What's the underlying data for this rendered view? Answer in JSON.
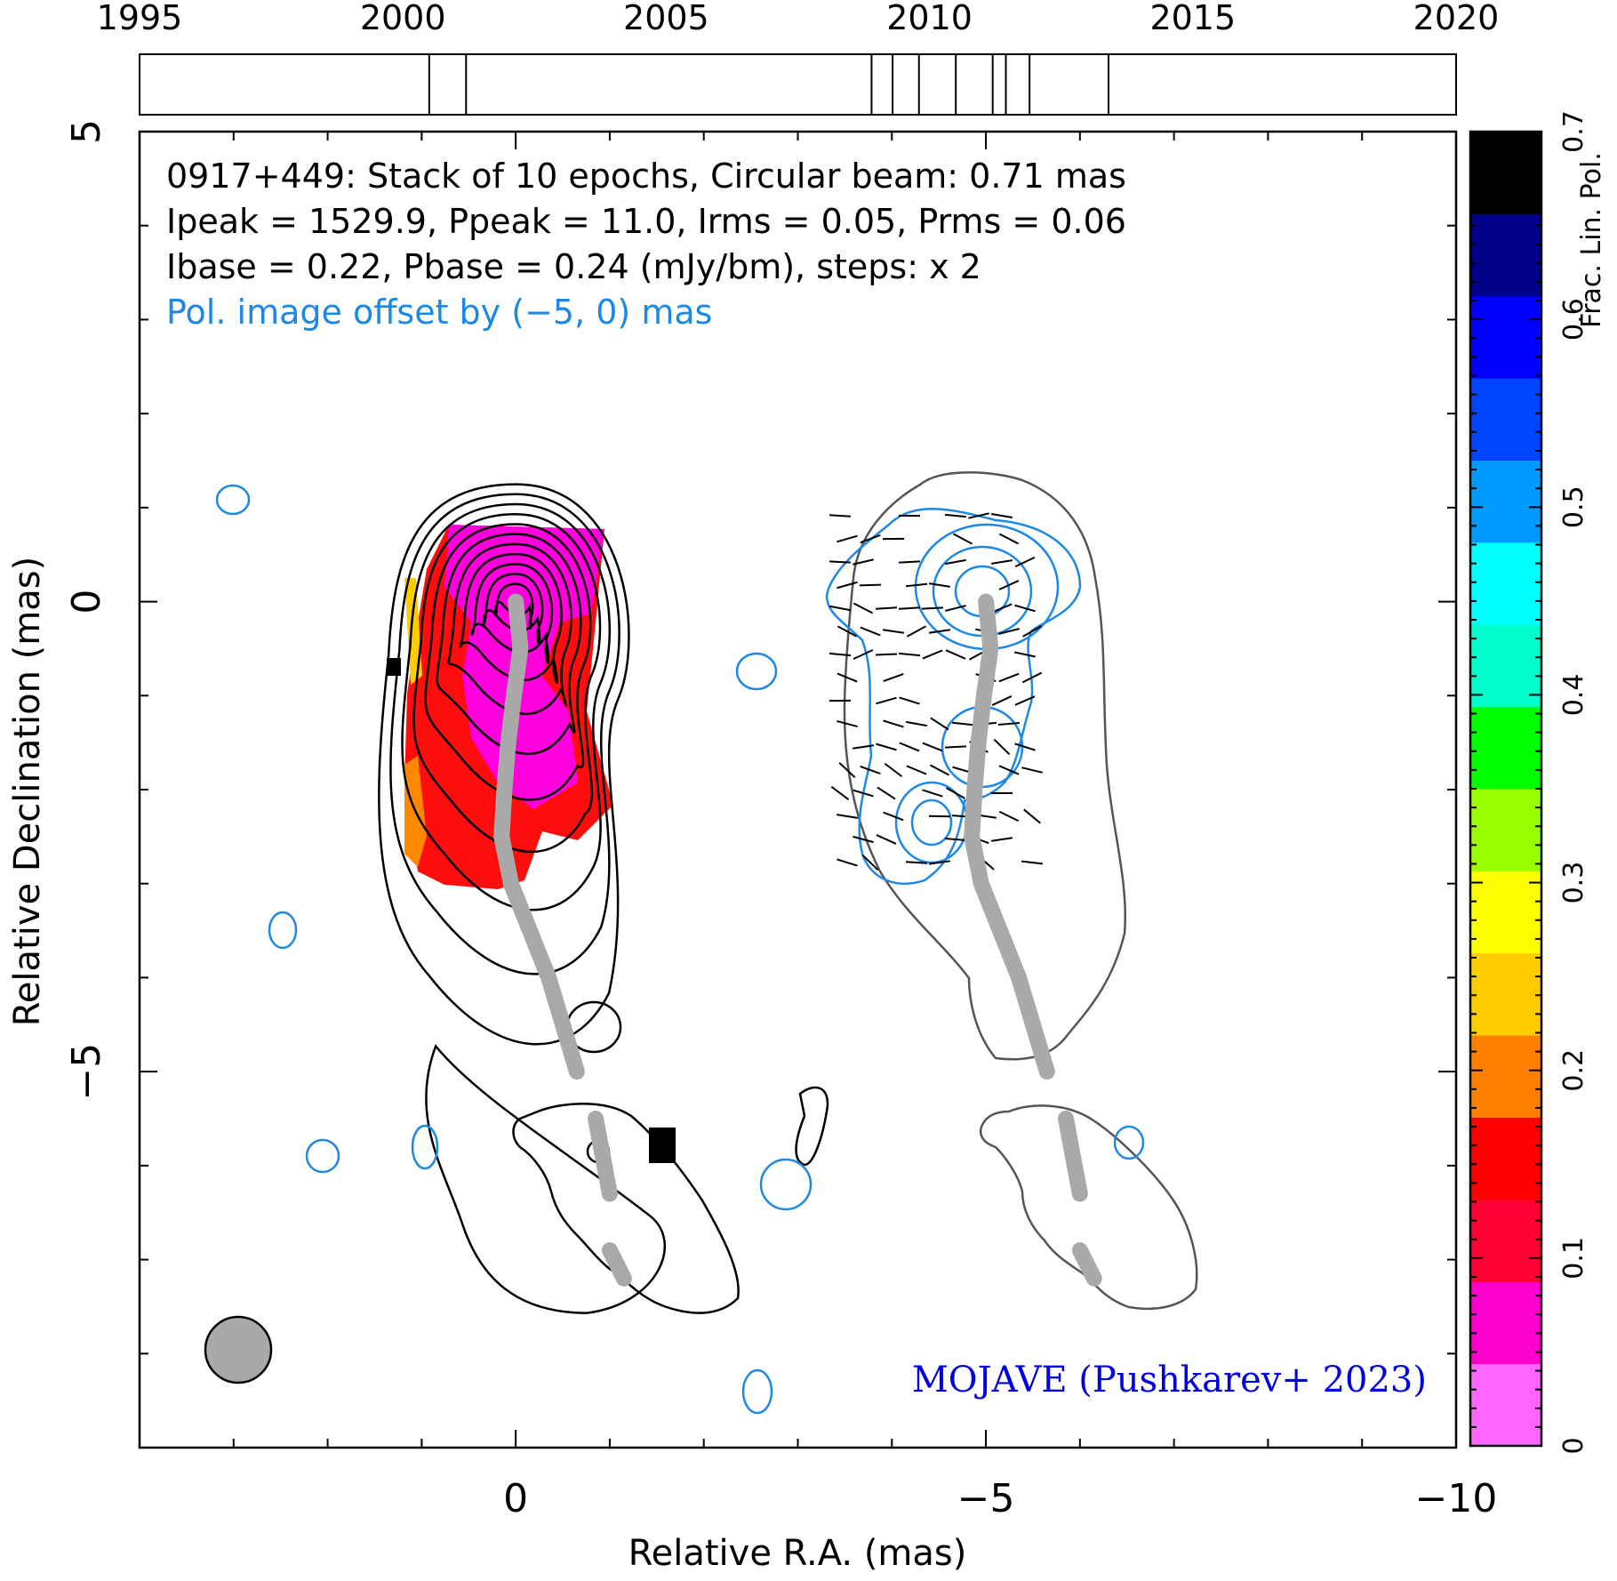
{
  "chart_data": [
    {
      "type": "timeline",
      "x_range": [
        1995,
        2020
      ],
      "tick_labels": [
        "1995",
        "2000",
        "2005",
        "2010",
        "2015",
        "2020"
      ],
      "epochs": [
        2000.5,
        2001.2,
        2008.9,
        2009.3,
        2009.8,
        2010.5,
        2011.2,
        2011.45,
        2011.9,
        2013.4
      ]
    },
    {
      "type": "contour-map",
      "xlabel": "Relative R.A. (mas)",
      "ylabel": "Relative Declination (mas)",
      "xlim": [
        4,
        -10
      ],
      "ylim": [
        -9,
        5
      ],
      "x_tick_labels": [
        "0",
        "−5",
        "−10"
      ],
      "y_tick_labels": [
        "5",
        "0",
        "−5"
      ],
      "annotations": {
        "line1": "0917+449: Stack of 10 epochs, Circular beam: 0.71 mas",
        "line2": "Ipeak = 1529.9, Ppeak = 11.0, Irms = 0.05, Prms = 0.06",
        "line3": "Ibase = 0.22, Pbase = 0.24 (mJy/bm), steps: x 2",
        "line4": "Pol. image offset by (−5, 0) mas",
        "credit": "MOJAVE (Pushkarev+ 2023)"
      },
      "beam_mas": 0.71,
      "jet_ridge_line": [
        [
          0,
          0
        ],
        [
          -0.05,
          -0.5
        ],
        [
          0.02,
          -1
        ],
        [
          0.08,
          -1.5
        ],
        [
          0.12,
          -2
        ],
        [
          0.15,
          -2.5
        ],
        [
          0.05,
          -3
        ],
        [
          -0.15,
          -3.5
        ],
        [
          -0.35,
          -4
        ],
        [
          -0.5,
          -4.5
        ],
        [
          -0.65,
          -5
        ]
      ],
      "colors": {
        "total_intensity": "#000000",
        "polarized_intensity": "#1e88e5",
        "ridge_line": "#a9a9a9",
        "credit": "#0000e0",
        "offset_note": "#1e88e5"
      }
    },
    {
      "type": "colorbar",
      "label": "Frac. Lin. Pol.",
      "range": [
        0,
        0.7
      ],
      "tick_labels": [
        "0",
        "0.1",
        "0.2",
        "0.3",
        "0.4",
        "0.5",
        "0.6",
        "0.7"
      ],
      "colormap": [
        "#ff66ff",
        "#ff00cc",
        "#ff0033",
        "#ff0000",
        "#ff8000",
        "#ffcc00",
        "#ffff00",
        "#99ff00",
        "#00ff00",
        "#00ffcc",
        "#00ffff",
        "#0099ff",
        "#0044ff",
        "#0000ff",
        "#000088",
        "#000000"
      ]
    }
  ]
}
